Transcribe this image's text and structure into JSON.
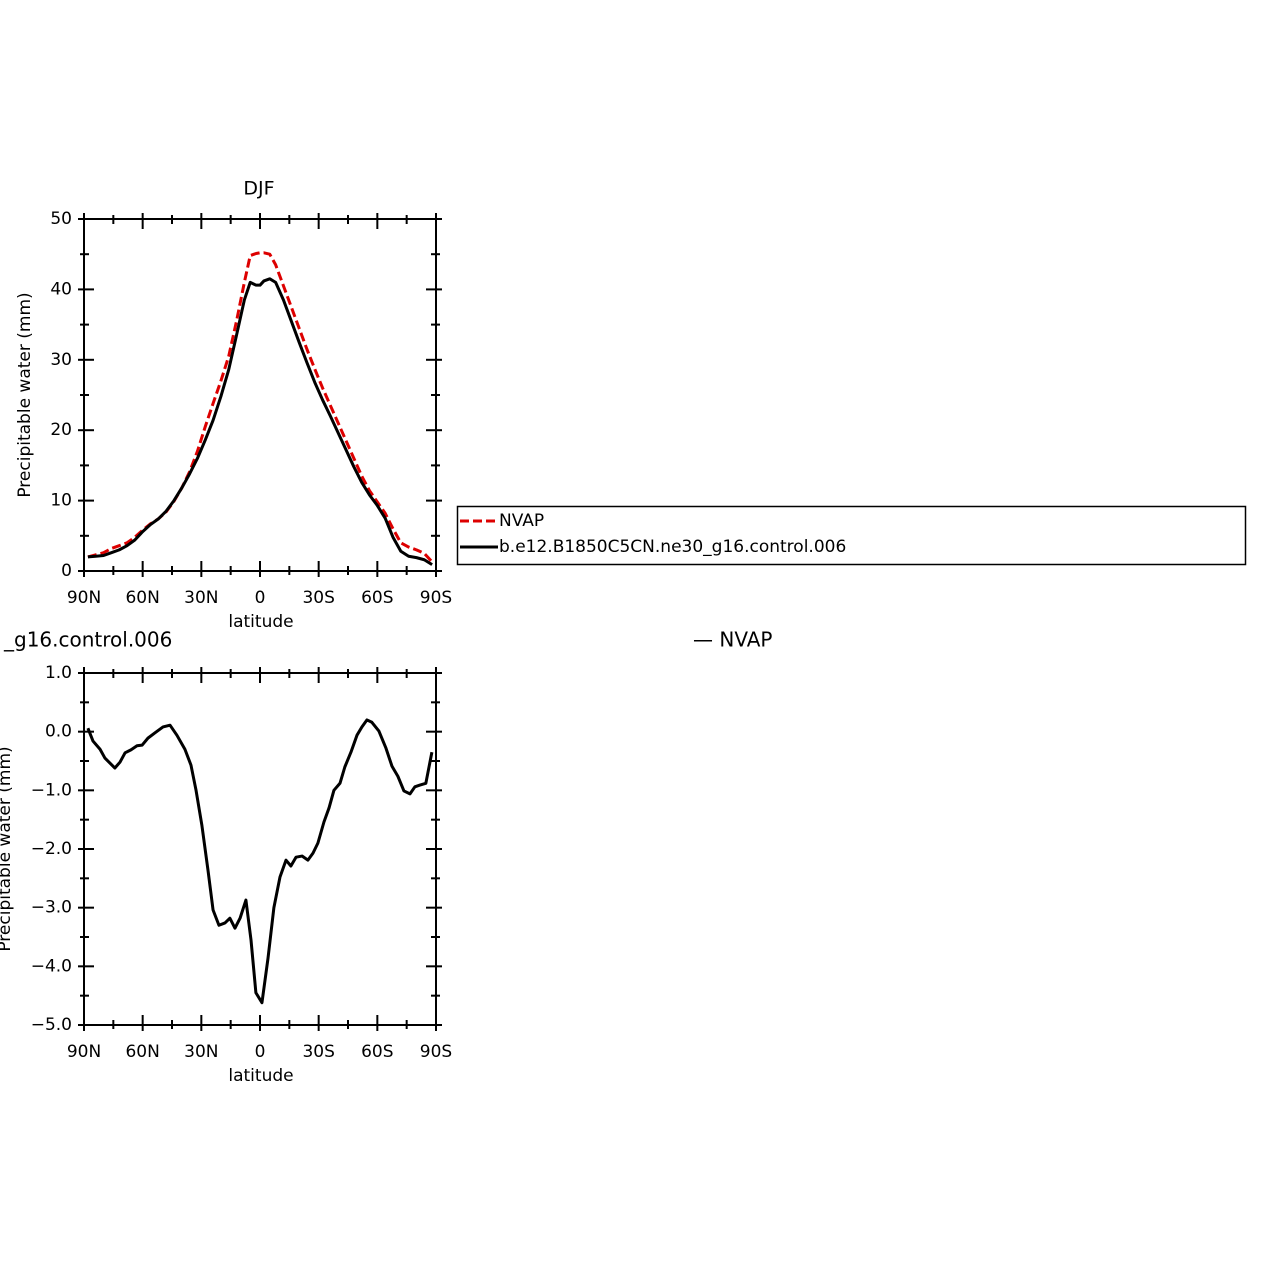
{
  "chart_data": [
    {
      "type": "line",
      "title": "DJF",
      "xlabel": "latitude",
      "ylabel": "Precipitable water (mm)",
      "x": [
        88,
        84,
        80,
        76,
        72,
        68,
        64,
        60,
        56,
        52,
        48,
        44,
        40,
        36,
        32,
        28,
        24,
        20,
        16,
        12,
        8,
        5,
        2,
        0,
        -2,
        -5,
        -8,
        -12,
        -16,
        -20,
        -24,
        -28,
        -32,
        -36,
        -40,
        -44,
        -48,
        -52,
        -56,
        -60,
        -64,
        -68,
        -72,
        -76,
        -80,
        -84,
        -88
      ],
      "series": [
        {
          "name": "NVAP",
          "color": "#dd0000",
          "dash": true,
          "values": [
            2.0,
            2.3,
            2.6,
            3.2,
            3.6,
            4.0,
            4.8,
            5.8,
            6.7,
            7.4,
            8.4,
            9.9,
            11.8,
            14.1,
            17.0,
            20.5,
            23.8,
            27.0,
            30.5,
            35.5,
            41.0,
            44.8,
            45.1,
            45.2,
            45.2,
            45.0,
            43.5,
            40.5,
            37.5,
            34.5,
            31.5,
            28.7,
            26.0,
            23.5,
            21.0,
            18.5,
            16.0,
            13.5,
            11.4,
            9.8,
            8.2,
            6.0,
            4.0,
            3.4,
            3.0,
            2.5,
            1.3
          ]
        },
        {
          "name": "b.e12.B1850C5CN.ne30_g16.control.006",
          "color": "#000000",
          "dash": false,
          "values": [
            2.0,
            2.1,
            2.2,
            2.6,
            3.0,
            3.6,
            4.4,
            5.6,
            6.6,
            7.4,
            8.5,
            10.0,
            11.8,
            13.8,
            16.0,
            18.6,
            21.4,
            24.8,
            28.6,
            33.5,
            38.5,
            41.0,
            40.6,
            40.6,
            41.2,
            41.5,
            41.0,
            38.5,
            35.5,
            32.5,
            29.6,
            26.8,
            24.3,
            22.0,
            19.6,
            17.2,
            14.8,
            12.6,
            10.8,
            9.3,
            7.5,
            4.8,
            2.8,
            2.1,
            1.9,
            1.6,
            0.9
          ]
        }
      ],
      "xlim": [
        90,
        -90
      ],
      "xticks": [
        {
          "value": 90,
          "label": "90N"
        },
        {
          "value": 60,
          "label": "60N"
        },
        {
          "value": 30,
          "label": "30N"
        },
        0,
        {
          "value": -30,
          "label": "30S"
        },
        {
          "value": -60,
          "label": "60S"
        },
        {
          "value": -90,
          "label": "90S"
        }
      ],
      "xminorticks": [
        75,
        45,
        15,
        -15,
        -45,
        -75
      ],
      "ylim": [
        0,
        50
      ],
      "yticks": [
        0,
        10,
        20,
        30,
        40,
        50
      ],
      "yminorticks": [
        5,
        15,
        25,
        35,
        45
      ],
      "legend": "right"
    },
    {
      "type": "line",
      "title_pieces": [
        "_g16.control.006",
        "— NVAP"
      ],
      "xlabel": "latitude",
      "ylabel": "Precipitable water (mm)",
      "x": [
        88,
        85.4,
        81.8,
        79.3,
        74.2,
        71.6,
        69,
        66,
        62.9,
        60.3,
        57.3,
        53.7,
        49.6,
        46,
        42.5,
        38.4,
        35.3,
        32.7,
        29.7,
        26.6,
        24,
        21,
        17.9,
        15.4,
        12.8,
        10.2,
        7.2,
        4.6,
        2.1,
        -1,
        -4.1,
        -7.1,
        -10.2,
        -13.3,
        -15.8,
        -18.4,
        -21.5,
        -24.5,
        -27.1,
        -29.6,
        -32.7,
        -35.3,
        -37.8,
        -40.9,
        -43.4,
        -46.5,
        -49.6,
        -52.1,
        -54.7,
        -57.2,
        -60.8,
        -64.4,
        -67.5,
        -70.5,
        -73.6,
        -76.7,
        -79.2,
        -81.8,
        -84.8,
        -87.9
      ],
      "series": [
        {
          "color": "#000000",
          "dash": false,
          "values": [
            0.06,
            -0.16,
            -0.3,
            -0.45,
            -0.62,
            -0.52,
            -0.36,
            -0.31,
            -0.24,
            -0.23,
            -0.11,
            -0.02,
            0.08,
            0.11,
            -0.06,
            -0.3,
            -0.57,
            -1.0,
            -1.6,
            -2.36,
            -3.04,
            -3.3,
            -3.26,
            -3.18,
            -3.35,
            -3.18,
            -2.87,
            -3.55,
            -4.45,
            -4.62,
            -3.86,
            -3.0,
            -2.48,
            -2.19,
            -2.29,
            -2.14,
            -2.12,
            -2.19,
            -2.07,
            -1.9,
            -1.54,
            -1.3,
            -1.0,
            -0.88,
            -0.6,
            -0.35,
            -0.06,
            0.08,
            0.2,
            0.16,
            0.01,
            -0.28,
            -0.59,
            -0.76,
            -1.01,
            -1.06,
            -0.94,
            -0.91,
            -0.88,
            -0.35
          ]
        }
      ],
      "xlim": [
        90,
        -90
      ],
      "xticks": [
        {
          "value": 90,
          "label": "90N"
        },
        {
          "value": 60,
          "label": "60N"
        },
        {
          "value": 30,
          "label": "30N"
        },
        0,
        {
          "value": -30,
          "label": "30S"
        },
        {
          "value": -60,
          "label": "60S"
        },
        {
          "value": -90,
          "label": "90S"
        }
      ],
      "xminorticks": [
        75,
        45,
        15,
        -15,
        -45,
        -75
      ],
      "ylim": [
        -5,
        1
      ],
      "yticks": [
        {
          "value": 1,
          "label": "1.0"
        },
        {
          "value": 0,
          "label": "0.0"
        },
        {
          "value": -1,
          "label": "−1.0"
        },
        {
          "value": -2,
          "label": "−2.0"
        },
        {
          "value": -3,
          "label": "−3.0"
        },
        {
          "value": -4,
          "label": "−4.0"
        },
        {
          "value": -5,
          "label": "−5.0"
        }
      ],
      "yminorticks": [
        0.5,
        -0.5,
        -1.5,
        -2.5,
        -3.5,
        -4.5
      ]
    }
  ]
}
